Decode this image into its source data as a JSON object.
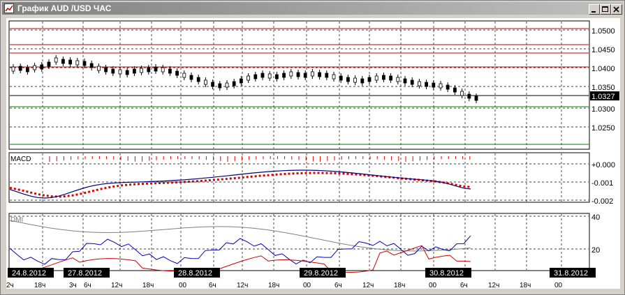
{
  "window": {
    "title": "График AUD /USD  ЧАС"
  },
  "price": {
    "y_axis": [
      "1.0500",
      "1.0450",
      "1.0400",
      "1.0350",
      "1.0300",
      "1.0250"
    ],
    "current": "1.0327",
    "colors": {
      "resistance": "#c00000",
      "support": "#008000",
      "current": "#000000"
    }
  },
  "macd": {
    "label": "MACD",
    "y_axis": [
      "+0.000",
      "-0.001",
      "-0.002"
    ],
    "colors": {
      "macd": "#000080",
      "signal": "#e00000",
      "histogram": "#e00000"
    }
  },
  "dmi": {
    "label": "DMI",
    "y_axis": [
      "40",
      "20"
    ],
    "colors": {
      "adx": "#808080",
      "plus_di": "#0000c0",
      "minus_di": "#d00000"
    }
  },
  "time_axis": {
    "dates": [
      "24.8.2012",
      "27.8.2012",
      "28.8.2012",
      "29.8.2012",
      "30.8.2012",
      "31.8.2012"
    ],
    "hours": [
      "2ч",
      "18ч",
      "3ч",
      "6ч",
      "12ч",
      "18ч",
      "00",
      "6ч",
      "12ч",
      "18ч",
      "00",
      "6ч",
      "12ч",
      "18ч",
      "00",
      "6ч",
      "12ч",
      "18ч",
      "00"
    ]
  }
}
